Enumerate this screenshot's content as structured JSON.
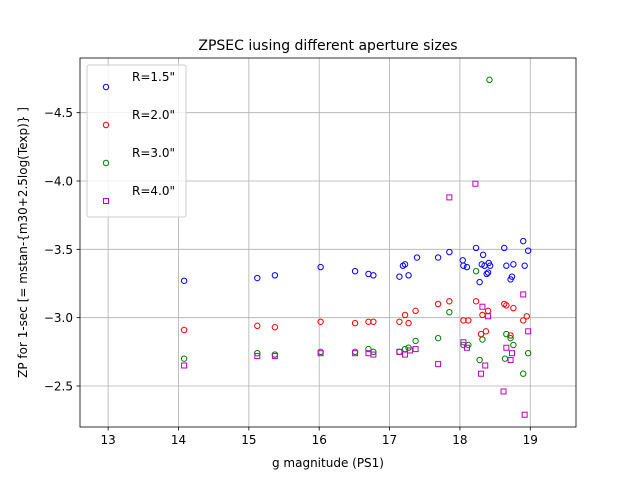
{
  "chart_data": {
    "type": "scatter",
    "title": "ZPSEC iusing different aperture sizes",
    "xlabel": "g magnitude (PS1)",
    "ylabel": "ZP for 1-sec  [= mstan-{m30+2.5log(Texp)} ]",
    "xlim": [
      12.6,
      19.65
    ],
    "ylim": [
      -2.2,
      -4.9
    ],
    "y_inverted": true,
    "grid": true,
    "legend_position": "upper-left",
    "xticks": [
      13,
      14,
      15,
      16,
      17,
      18,
      19
    ],
    "xtick_labels": [
      "13",
      "14",
      "15",
      "16",
      "17",
      "18",
      "19"
    ],
    "yticks": [
      -2.5,
      -3.0,
      -3.5,
      -4.0,
      -4.5
    ],
    "ytick_labels": [
      "−2.5",
      "−3.0",
      "−3.5",
      "−4.0",
      "−4.5"
    ],
    "series": [
      {
        "name": "R=1.5\"",
        "color": "#0000ff",
        "marker": "circle",
        "x": [
          14.08,
          15.12,
          15.37,
          16.02,
          16.51,
          16.7,
          16.77,
          17.14,
          17.19,
          17.22,
          17.27,
          17.39,
          17.69,
          17.85,
          18.04,
          18.05,
          18.1,
          18.23,
          18.28,
          18.31,
          18.33,
          18.35,
          18.38,
          18.4,
          18.41,
          18.43,
          18.63,
          18.66,
          18.72,
          18.74,
          18.76,
          18.9,
          18.92,
          18.97
        ],
        "y": [
          -3.27,
          -3.29,
          -3.31,
          -3.37,
          -3.34,
          -3.32,
          -3.31,
          -3.3,
          -3.38,
          -3.39,
          -3.31,
          -3.44,
          -3.44,
          -3.48,
          -3.42,
          -3.38,
          -3.37,
          -3.51,
          -3.26,
          -3.39,
          -3.46,
          -3.38,
          -3.32,
          -3.33,
          -3.4,
          -3.38,
          -3.51,
          -3.38,
          -3.28,
          -3.3,
          -3.39,
          -3.56,
          -3.38,
          -3.49
        ]
      },
      {
        "name": "R=2.0\"",
        "color": "#ff0000",
        "marker": "circle",
        "x": [
          14.08,
          15.12,
          15.37,
          16.02,
          16.51,
          16.7,
          16.77,
          17.14,
          17.22,
          17.27,
          17.37,
          17.69,
          17.85,
          18.05,
          18.12,
          18.23,
          18.3,
          18.32,
          18.37,
          18.4,
          18.63,
          18.66,
          18.72,
          18.76,
          18.9,
          18.95
        ],
        "y": [
          -2.91,
          -2.94,
          -2.93,
          -2.97,
          -2.96,
          -2.97,
          -2.97,
          -2.97,
          -3.02,
          -2.96,
          -3.05,
          -3.1,
          -3.12,
          -2.98,
          -2.98,
          -3.12,
          -2.88,
          -3.02,
          -2.9,
          -3.05,
          -3.1,
          -3.09,
          -2.87,
          -3.07,
          -2.98,
          -3.01
        ]
      },
      {
        "name": "R=3.0\"",
        "color": "#008000",
        "marker": "circle",
        "x": [
          14.08,
          15.12,
          15.37,
          16.02,
          16.51,
          16.7,
          16.77,
          17.14,
          17.22,
          17.27,
          17.37,
          17.69,
          17.85,
          18.05,
          18.12,
          18.23,
          18.28,
          18.32,
          18.42,
          18.64,
          18.66,
          18.72,
          18.76,
          18.9,
          18.97
        ],
        "y": [
          -2.7,
          -2.74,
          -2.73,
          -2.75,
          -2.75,
          -2.77,
          -2.75,
          -2.75,
          -2.77,
          -2.78,
          -2.83,
          -2.85,
          -3.04,
          -2.8,
          -2.8,
          -3.34,
          -2.69,
          -2.84,
          -4.74,
          -2.7,
          -2.88,
          -2.85,
          -2.8,
          -2.59,
          -2.74
        ]
      },
      {
        "name": "R=4.0\"",
        "color": "#bf00bf",
        "marker": "square",
        "x": [
          14.08,
          15.12,
          15.37,
          16.02,
          16.51,
          16.7,
          16.77,
          17.14,
          17.22,
          17.29,
          17.37,
          17.69,
          17.85,
          18.05,
          18.1,
          18.22,
          18.3,
          18.32,
          18.36,
          18.4,
          18.62,
          18.66,
          18.72,
          18.74,
          18.9,
          18.92,
          18.97
        ],
        "y": [
          -2.65,
          -2.72,
          -2.72,
          -2.74,
          -2.74,
          -2.74,
          -2.73,
          -2.75,
          -2.73,
          -2.76,
          -2.77,
          -2.66,
          -3.88,
          -2.82,
          -2.78,
          -3.98,
          -2.59,
          -3.08,
          -2.65,
          -3.01,
          -2.46,
          -2.78,
          -2.69,
          -2.74,
          -3.17,
          -2.29,
          -2.9
        ]
      }
    ]
  }
}
